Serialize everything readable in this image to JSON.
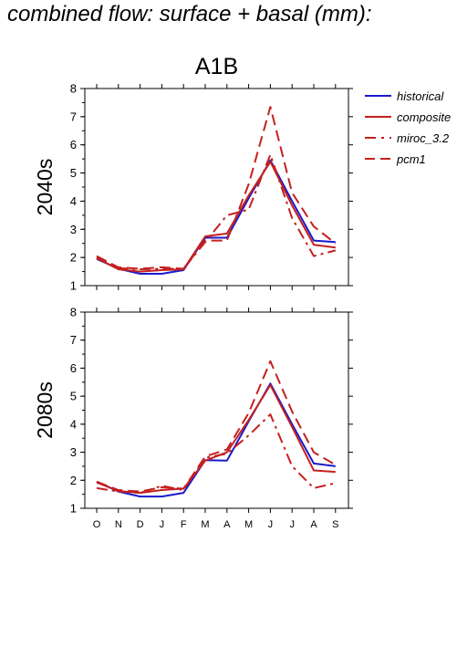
{
  "page_title": "combined flow: surface + basal (mm):",
  "colors": {
    "historical": "#1a1acc",
    "future": "#c42020"
  },
  "chart_data": [
    {
      "type": "line",
      "title": "A1B",
      "ylabel": "2040s",
      "categories": [
        "O",
        "N",
        "D",
        "J",
        "F",
        "M",
        "A",
        "M",
        "J",
        "J",
        "A",
        "S"
      ],
      "ylim": [
        1,
        8
      ],
      "yticks": [
        1,
        2,
        3,
        4,
        5,
        6,
        7,
        8
      ],
      "legend_position": "right",
      "series": [
        {
          "name": "historical",
          "style": "solid",
          "color": "#1a1acc",
          "values": [
            1.95,
            1.6,
            1.42,
            1.42,
            1.55,
            2.7,
            2.7,
            4.1,
            5.45,
            4.0,
            2.6,
            2.55
          ]
        },
        {
          "name": "composite",
          "style": "solid",
          "color": "#c42020",
          "values": [
            1.98,
            1.58,
            1.5,
            1.55,
            1.58,
            2.75,
            2.85,
            4.2,
            5.4,
            3.85,
            2.45,
            2.35
          ]
        },
        {
          "name": "miroc_3.2",
          "style": "dashdot",
          "color": "#c42020",
          "values": [
            2.0,
            1.62,
            1.58,
            1.6,
            1.6,
            2.55,
            3.5,
            3.7,
            5.65,
            3.4,
            2.05,
            2.25
          ]
        },
        {
          "name": "pcm1",
          "style": "dashed",
          "color": "#c42020",
          "values": [
            2.05,
            1.65,
            1.6,
            1.65,
            1.6,
            2.6,
            2.6,
            4.6,
            7.35,
            4.3,
            3.1,
            2.5
          ]
        }
      ]
    },
    {
      "type": "line",
      "title": "",
      "ylabel": "2080s",
      "categories": [
        "O",
        "N",
        "D",
        "J",
        "F",
        "M",
        "A",
        "M",
        "J",
        "J",
        "A",
        "S"
      ],
      "ylim": [
        1,
        8
      ],
      "yticks": [
        1,
        2,
        3,
        4,
        5,
        6,
        7,
        8
      ],
      "series": [
        {
          "name": "historical",
          "style": "solid",
          "color": "#1a1acc",
          "values": [
            1.95,
            1.6,
            1.42,
            1.42,
            1.55,
            2.72,
            2.7,
            4.1,
            5.45,
            4.0,
            2.6,
            2.5
          ]
        },
        {
          "name": "composite",
          "style": "solid",
          "color": "#c42020",
          "values": [
            1.92,
            1.62,
            1.55,
            1.65,
            1.7,
            2.7,
            3.0,
            4.15,
            5.4,
            3.9,
            2.35,
            2.3
          ]
        },
        {
          "name": "miroc_3.2",
          "style": "dashdot",
          "color": "#c42020",
          "values": [
            1.72,
            1.6,
            1.55,
            1.8,
            1.65,
            2.8,
            2.95,
            3.6,
            4.35,
            2.5,
            1.72,
            1.9
          ]
        },
        {
          "name": "pcm1",
          "style": "dashed",
          "color": "#c42020",
          "values": [
            1.95,
            1.65,
            1.6,
            1.75,
            1.7,
            2.85,
            3.1,
            4.4,
            6.25,
            4.45,
            3.0,
            2.55
          ]
        }
      ]
    }
  ]
}
